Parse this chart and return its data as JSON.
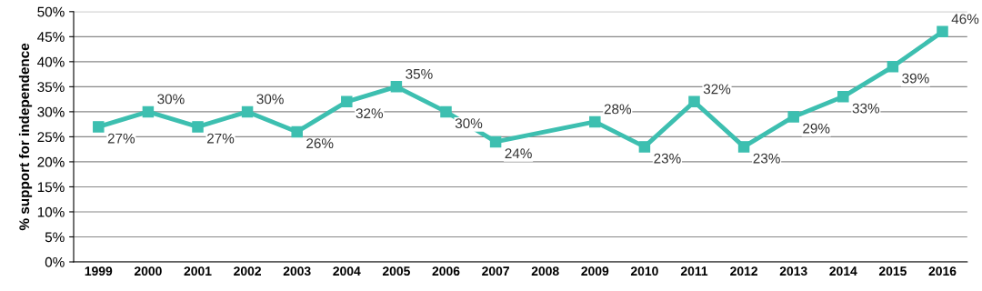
{
  "chart_data": {
    "type": "line",
    "ylabel": "% support for independence",
    "categories": [
      "1999",
      "2000",
      "2001",
      "2002",
      "2003",
      "2004",
      "2005",
      "2006",
      "2007",
      "2008",
      "2009",
      "2010",
      "2011",
      "2012",
      "2013",
      "2014",
      "2015",
      "2016"
    ],
    "series": [
      {
        "color": "#3dbfb0",
        "values": [
          27,
          30,
          27,
          30,
          26,
          32,
          35,
          30,
          24,
          null,
          28,
          23,
          32,
          23,
          29,
          33,
          39,
          46
        ],
        "value_labels": [
          "27%",
          "30%",
          "27%",
          "30%",
          "26%",
          "32%",
          "35%",
          "30%",
          "24%",
          null,
          "28%",
          "23%",
          "32%",
          "23%",
          "29%",
          "33%",
          "39%",
          "46%"
        ]
      }
    ],
    "ylim": [
      0,
      50
    ],
    "yticks": [
      {
        "value": 0,
        "label": "0%"
      },
      {
        "value": 5,
        "label": "5%"
      },
      {
        "value": 10,
        "label": "10%"
      },
      {
        "value": 15,
        "label": "15%"
      },
      {
        "value": 20,
        "label": "20%"
      },
      {
        "value": 25,
        "label": "25%"
      },
      {
        "value": 30,
        "label": "30%"
      },
      {
        "value": 35,
        "label": "35%"
      },
      {
        "value": 40,
        "label": "40%"
      },
      {
        "value": 45,
        "label": "45%"
      },
      {
        "value": 50,
        "label": "50%"
      }
    ],
    "grid": "y",
    "marker": "square",
    "line_style": "solid"
  }
}
